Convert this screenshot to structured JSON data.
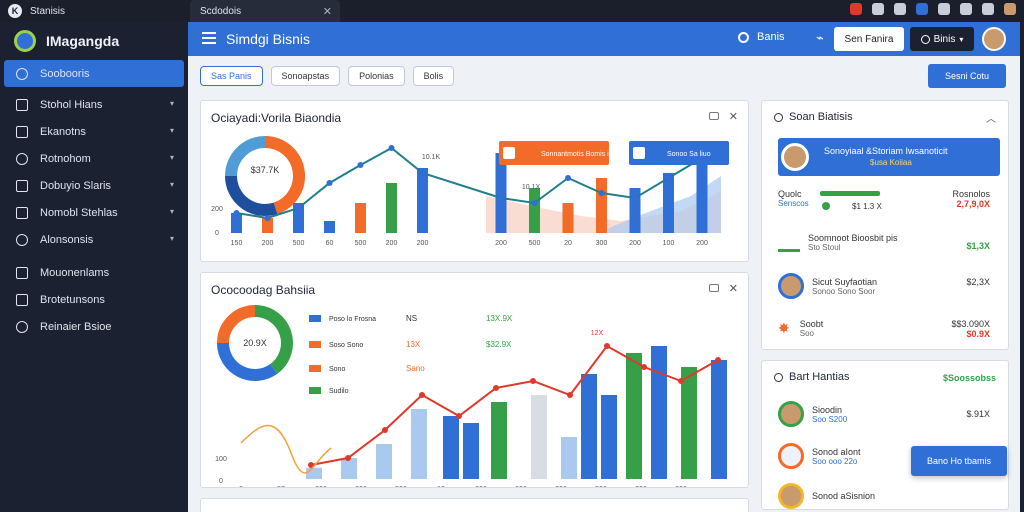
{
  "browser": {
    "tab_main": "Stanisis",
    "tab_second": "Scdodois"
  },
  "sidebar": {
    "brand": "IMagangda",
    "items": [
      {
        "label": "Soobooris",
        "active": true,
        "chevron": false
      },
      {
        "label": "Stohol Hians",
        "active": false,
        "chevron": true
      },
      {
        "label": "Ekanotns",
        "active": false,
        "chevron": true
      },
      {
        "label": "Rotnohom",
        "active": false,
        "chevron": true
      },
      {
        "label": "Dobuyio Slaris",
        "active": false,
        "chevron": true
      },
      {
        "label": "Nomobl Stehlas",
        "active": false,
        "chevron": true
      },
      {
        "label": "Alonsonsis",
        "active": false,
        "chevron": true
      },
      {
        "label": "Mouonenlams",
        "active": false,
        "chevron": false
      },
      {
        "label": "Brotetunsons",
        "active": false,
        "chevron": false
      },
      {
        "label": "Reinaier Bsioe",
        "active": false,
        "chevron": false
      }
    ]
  },
  "header": {
    "title": "Simdgi Bisnis",
    "search_label": "Banis",
    "button_light": "Sen Fanira",
    "button_dark": "Binis"
  },
  "filters": [
    "Sas Panis",
    "Sonoapstas",
    "Polonias",
    "Bolis"
  ],
  "primary_button": "Sesni Cotu",
  "card1": {
    "title": "Ociayadi:Vorila Biaondia",
    "donut_label": "$37.7K",
    "legend_1": "Sonnantmotis Bomis itso",
    "legend_2": "Sonoo Sa liuo",
    "peak_label": "10.1K",
    "mid_label": "10.1X",
    "chart_data": {
      "type": "bar",
      "title": "Ociayadi:Vorila Biaondia",
      "categories": [
        "150",
        "200",
        "500",
        "60",
        "500",
        "200",
        "200",
        "200",
        "500",
        "20",
        "300",
        "200",
        "100",
        "200"
      ],
      "values": [
        20,
        15,
        30,
        12,
        30,
        50,
        65,
        80,
        45,
        30,
        55,
        45,
        60,
        70
      ],
      "series_line": [
        20,
        15,
        25,
        50,
        68,
        85,
        60,
        35,
        30,
        55,
        40,
        35,
        55,
        75
      ],
      "ylabel_ticks": [
        "200",
        "0"
      ]
    }
  },
  "card2": {
    "title": "Ococoodag Bahsiia",
    "donut_label": "20.9X",
    "legend": [
      {
        "name": "Poso lo Frosna",
        "v1": "NS",
        "v2": "13X.9X"
      },
      {
        "name": "Soso Sono",
        "v1": "13X",
        "v2": "$32.9X"
      },
      {
        "name": "Sono",
        "v1": "Sano",
        "v2": ""
      },
      {
        "name": "Sudilo",
        "v1": "",
        "v2": ""
      }
    ],
    "peak_label": "12X",
    "chart_data": {
      "type": "bar",
      "title": "Ococoodag Bahsiia",
      "categories": [
        "0",
        "57",
        "300",
        "300",
        "500",
        "10",
        "300",
        "900",
        "200",
        "500",
        "200",
        "300"
      ],
      "values": [
        15,
        20,
        35,
        45,
        55,
        40,
        50,
        30,
        75,
        60,
        95,
        80
      ],
      "series_line": [
        10,
        15,
        35,
        60,
        45,
        65,
        70,
        60,
        95,
        80,
        70,
        85
      ],
      "ylabel_ticks": [
        "100",
        "0"
      ]
    }
  },
  "right_top": {
    "title": "Soan Biatisis",
    "highlight": {
      "name": "Sonoyiaal &Storiam Iwsanoticit",
      "sub": "$usa Koiiaa"
    },
    "rows": [
      {
        "name": "Quolc",
        "sub": "Senscos",
        "mid": "$1 1.3 X",
        "value": "Rosnolos",
        "value2": "2,7,9,0X",
        "tone": "neg"
      },
      {
        "name": "Soomnoot Bioosbit pis",
        "sub": "Sto Stoul",
        "mid": "",
        "value": "$1,3X",
        "value2": "",
        "tone": "pos"
      },
      {
        "name": "Sicut Suyfaotian",
        "sub": "Sonoo Sono Soor",
        "mid": "",
        "value": "$2,3X",
        "value2": "",
        "tone": "plain"
      },
      {
        "name": "Soobt",
        "sub": "Soo",
        "mid": "",
        "value": "$$3.090X",
        "value2": "$0.9X",
        "tone": "neg"
      }
    ]
  },
  "right_bottom": {
    "title": "Bart Hantias",
    "badge": "$Soossobss",
    "rows": [
      {
        "name": "Sioodin",
        "sub": "Soo S200",
        "value": "$.91X"
      },
      {
        "name": "Sonod aIont",
        "sub": "Soo ooo 22o",
        "value": ""
      },
      {
        "name": "Sonod aSisnion",
        "sub": "",
        "value": ""
      }
    ]
  },
  "toast": "Bano Ho tbamis",
  "colors": {
    "accent": "#2f6fd6",
    "sidebar": "#1b2130",
    "green": "#35a047",
    "orange": "#f26b28",
    "red": "#e0392b",
    "light_blue": "#a9c9ee"
  }
}
